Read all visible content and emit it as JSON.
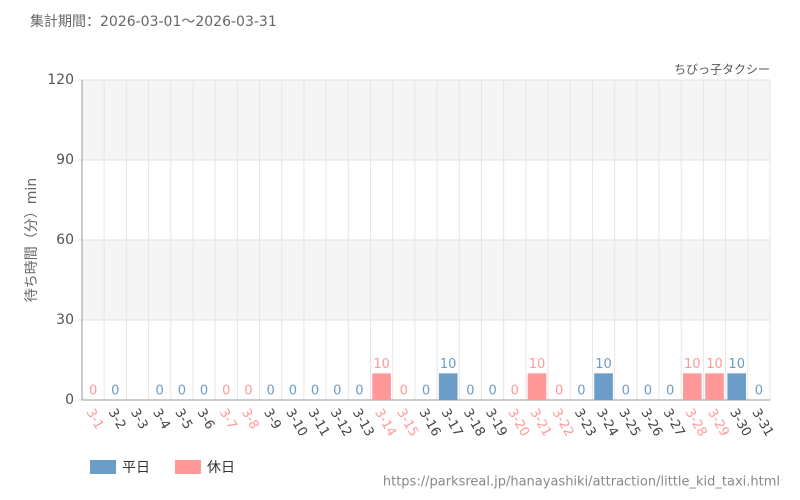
{
  "chart_data": {
    "type": "bar",
    "title": "集計期間：2026-03-01～2026-03-31",
    "subtitle": "ちびっ子タクシー",
    "y_label": "待ち時間（分）min",
    "source": "https://parksreal.jp/hanayashiki/attraction/little_kid_taxi.html",
    "categories": [
      "3-1",
      "3-2",
      "3-3",
      "3-4",
      "3-5",
      "3-6",
      "3-7",
      "3-8",
      "3-9",
      "3-10",
      "3-11",
      "3-12",
      "3-13",
      "3-14",
      "3-15",
      "3-16",
      "3-17",
      "3-18",
      "3-19",
      "3-20",
      "3-21",
      "3-22",
      "3-23",
      "3-24",
      "3-25",
      "3-26",
      "3-27",
      "3-28",
      "3-29",
      "3-30",
      "3-31"
    ],
    "series": [
      {
        "name": "平日",
        "color": "#6b9dc6",
        "values": [
          null,
          0,
          null,
          0,
          0,
          0,
          null,
          null,
          0,
          0,
          0,
          0,
          0,
          null,
          null,
          0,
          10,
          0,
          0,
          null,
          null,
          null,
          0,
          10,
          0,
          0,
          0,
          null,
          null,
          10,
          0
        ]
      },
      {
        "name": "休日",
        "color": "#ff9999",
        "values": [
          0,
          null,
          null,
          null,
          null,
          null,
          0,
          0,
          null,
          null,
          null,
          null,
          null,
          10,
          0,
          null,
          null,
          null,
          null,
          0,
          10,
          0,
          null,
          null,
          null,
          null,
          null,
          10,
          10,
          null,
          null
        ]
      }
    ],
    "ylim": [
      0,
      120
    ],
    "yticks": [
      0,
      30,
      60,
      90,
      120
    ],
    "grid": true
  }
}
